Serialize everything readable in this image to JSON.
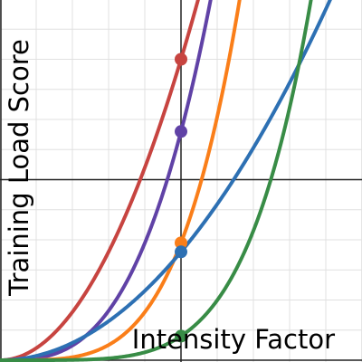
{
  "chart_data": {
    "type": "line",
    "title": "",
    "xlabel": "Intensity Factor",
    "ylabel": "Training Load Score",
    "xlim": [
      0,
      2
    ],
    "ylim": [
      0,
      6
    ],
    "grid": true,
    "legend": false,
    "highlight_x": 1,
    "series": [
      {
        "color": "#c74440",
        "function": "x^2 * 5",
        "exponent": 2,
        "coefficient": 5,
        "marker_x": 1,
        "marker_y": 5.0
      },
      {
        "color": "#6042a6",
        "function": "x^3 * 3.8",
        "exponent": 3,
        "coefficient": 3.8,
        "marker_x": 1,
        "marker_y": 3.8
      },
      {
        "color": "#fa7e19",
        "function": "x^4 * 1.95",
        "exponent": 4,
        "coefficient": 1.95,
        "marker_x": 1,
        "marker_y": 1.95
      },
      {
        "color": "#2d70b3",
        "function": "x^2 * 1.8",
        "exponent": 2,
        "coefficient": 1.8,
        "marker_x": 1,
        "marker_y": 1.8
      },
      {
        "color": "#388c46",
        "function": "x^5 * 0.4",
        "exponent": 5,
        "coefficient": 0.4,
        "marker_x": 1,
        "marker_y": 0.4
      }
    ]
  }
}
